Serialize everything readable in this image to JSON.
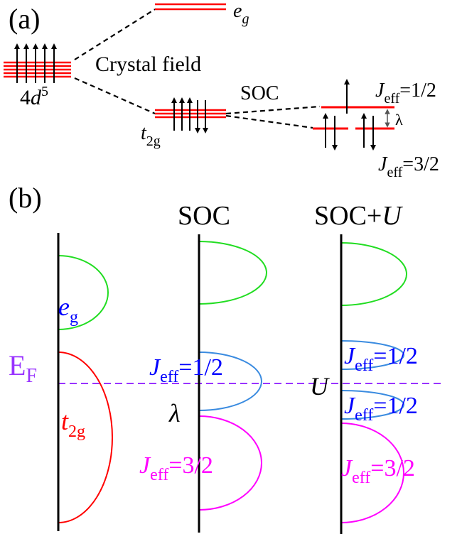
{
  "panel_a": {
    "label": "(a)",
    "atomic_level": {
      "symbol": "4",
      "var": "d",
      "sup": "5"
    },
    "crystal_field": "Crystal field",
    "eg": {
      "main": "e",
      "sub": "g"
    },
    "t2g": {
      "main": "t",
      "sub": "2g"
    },
    "soc": "SOC",
    "lambda": "λ",
    "jeff_half": {
      "main": "J",
      "sub": "eff",
      "value": "=1/2"
    },
    "jeff_three_half": {
      "main": "J",
      "sub": "eff",
      "value": "=3/2"
    }
  },
  "panel_b": {
    "label": "(b)",
    "ef": {
      "main": "E",
      "sub": "F"
    },
    "col_soc": "SOC",
    "col_socu": {
      "main": "SOC+",
      "var": "U"
    },
    "eg": {
      "main": "e",
      "sub": "g"
    },
    "t2g": {
      "main": "t",
      "sub": "2g"
    },
    "jeff_half": {
      "main": "J",
      "sub": "eff",
      "value": "=1/2"
    },
    "jeff_three_half": {
      "main": "J",
      "sub": "eff",
      "value": "=3/2"
    },
    "lambda": "λ",
    "u": "U"
  },
  "colors": {
    "level": "#ff0000",
    "eg_band": "#22dd22",
    "t2g_band": "#ff0000",
    "jeff_half_band": "#3a8be0",
    "jeff_three_half_band": "#ff00ff",
    "eg_label": "#0000ff",
    "t2g_label": "#ff0000",
    "jeff_half_label": "#0000ff",
    "jeff_three_half_label": "#ff00ff",
    "fermi": "#9933ff",
    "ef_label": "#9933ff"
  }
}
